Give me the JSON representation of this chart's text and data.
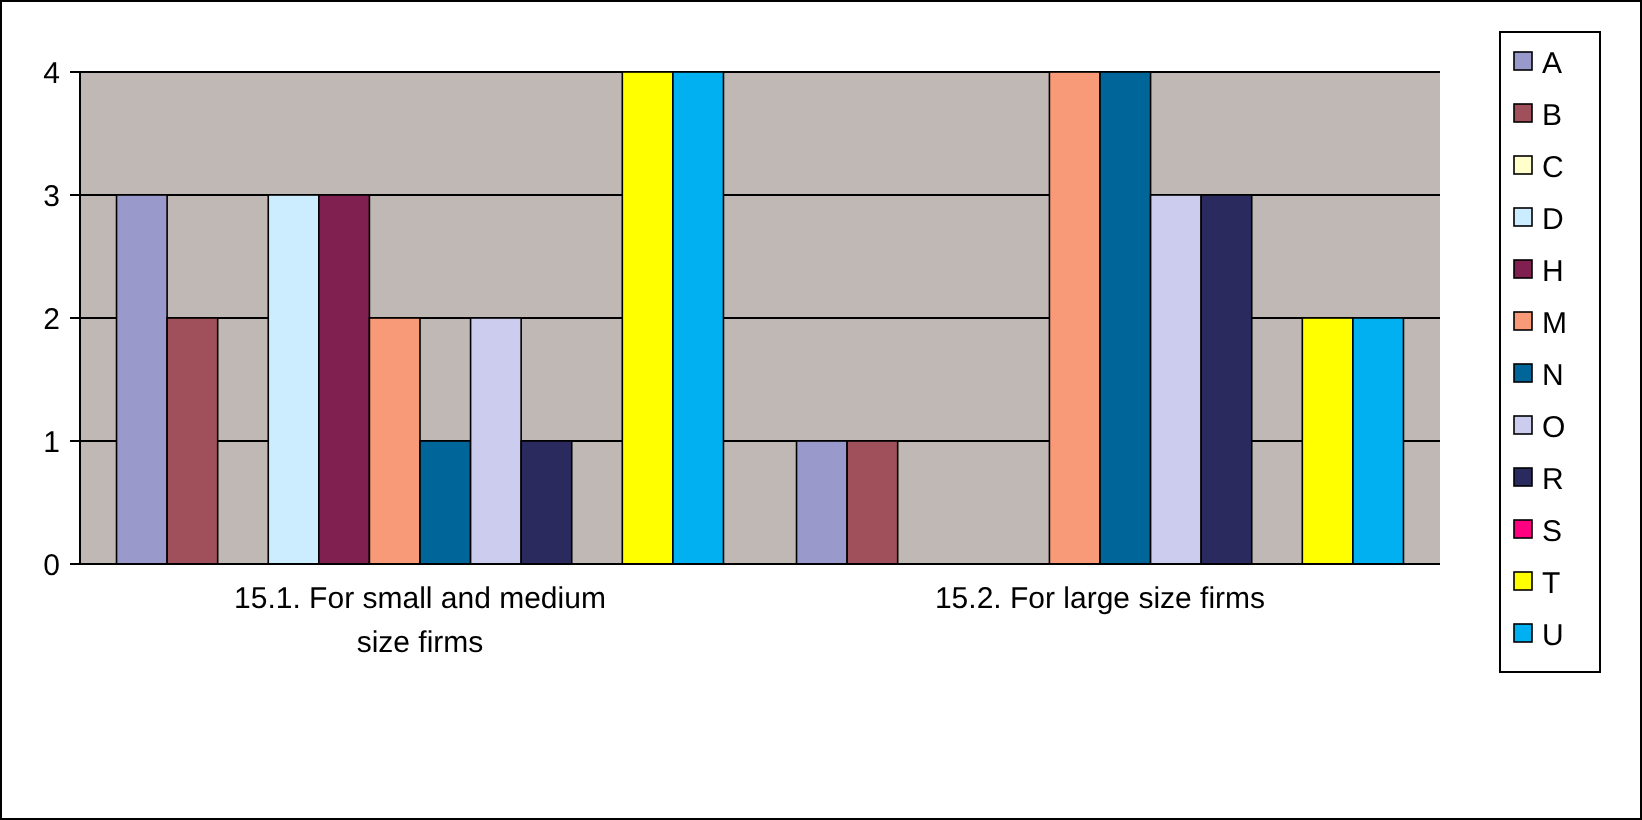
{
  "chart_data": {
    "type": "bar",
    "categories": [
      "15.1. For small and medium size firms",
      "15.2. For large size firms"
    ],
    "series": [
      {
        "name": "A",
        "color": "#9999cc",
        "values": [
          3,
          1
        ]
      },
      {
        "name": "B",
        "color": "#a0505a",
        "values": [
          2,
          1
        ]
      },
      {
        "name": "C",
        "color": "#ffffcc",
        "values": [
          0,
          0
        ]
      },
      {
        "name": "D",
        "color": "#ccecff",
        "values": [
          3,
          0
        ]
      },
      {
        "name": "H",
        "color": "#7f2050",
        "values": [
          3,
          0
        ]
      },
      {
        "name": "M",
        "color": "#f89a78",
        "values": [
          2,
          4
        ]
      },
      {
        "name": "N",
        "color": "#006699",
        "values": [
          1,
          4
        ]
      },
      {
        "name": "O",
        "color": "#ccccee",
        "values": [
          2,
          3
        ]
      },
      {
        "name": "R",
        "color": "#2a2a5e",
        "values": [
          1,
          3
        ]
      },
      {
        "name": "S",
        "color": "#ff0080",
        "values": [
          0,
          0
        ]
      },
      {
        "name": "T",
        "color": "#ffff00",
        "values": [
          4,
          2
        ]
      },
      {
        "name": "U",
        "color": "#00b0f0",
        "values": [
          4,
          2
        ]
      }
    ],
    "ylim": [
      0,
      4
    ],
    "yticks": [
      0,
      1,
      2,
      3,
      4
    ],
    "grid": "y",
    "legend": "right"
  }
}
